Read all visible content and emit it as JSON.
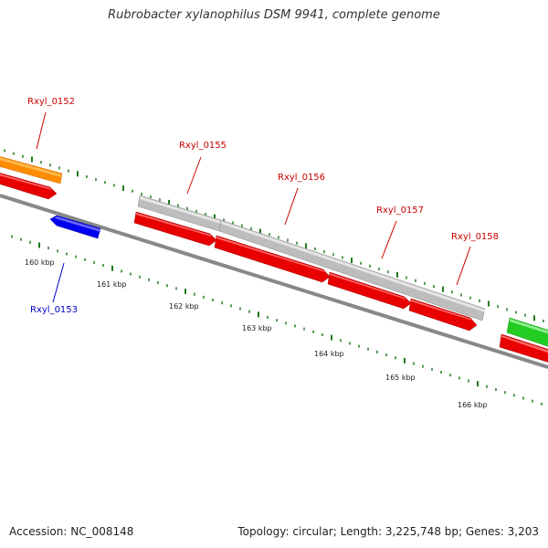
{
  "title": "Rubrobacter xylanophilus DSM 9941, complete genome",
  "footer": {
    "accession": "Accession: NC_008148",
    "summary": "Topology: circular; Length: 3,225,748 bp; Genes: 3,203"
  },
  "colors": {
    "red": "#e80000",
    "orange": "#ff8c00",
    "blue": "#0000ee",
    "green": "#22cc22",
    "grey": "#bdbdbd",
    "backbone": "#777777",
    "tick": "#1f7a1f",
    "label_red": "#cc0000",
    "label_blue": "#0000cc"
  },
  "kbp_labels": [
    "160 kbp",
    "161 kbp",
    "162 kbp",
    "163 kbp",
    "164 kbp",
    "165 kbp",
    "166 kbp"
  ],
  "gene_labels": [
    {
      "text": "Rxyl_0152",
      "color": "label_red"
    },
    {
      "text": "Rxyl_0153",
      "color": "label_blue"
    },
    {
      "text": "Rxyl_0155",
      "color": "label_red"
    },
    {
      "text": "Rxyl_0156",
      "color": "label_red"
    },
    {
      "text": "Rxyl_0157",
      "color": "label_red"
    },
    {
      "text": "Rxyl_0158",
      "color": "label_red"
    }
  ]
}
